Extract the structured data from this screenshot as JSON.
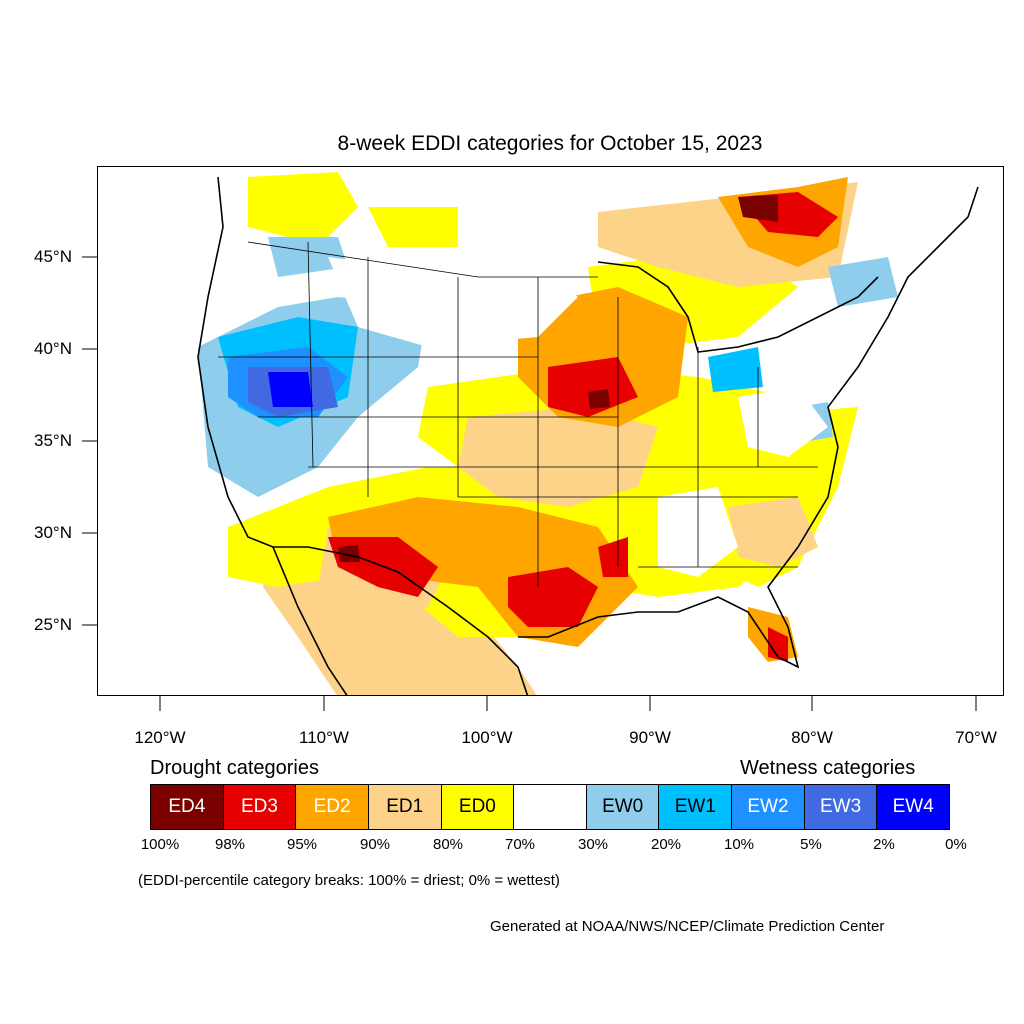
{
  "title": "8-week EDDI categories for October 15, 2023",
  "y_ticks": [
    "45°N",
    "40°N",
    "35°N",
    "30°N",
    "25°N"
  ],
  "x_ticks": [
    "120°W",
    "110°W",
    "100°W",
    "90°W",
    "80°W",
    "70°W"
  ],
  "legend": {
    "drought_heading": "Drought categories",
    "wetness_heading": "Wetness categories",
    "categories": [
      {
        "label": "ED4",
        "color": "#7a0000",
        "text_color": "#ffffff"
      },
      {
        "label": "ED3",
        "color": "#e60000",
        "text_color": "#ffffff"
      },
      {
        "label": "ED2",
        "color": "#ffa500",
        "text_color": "#ffffff"
      },
      {
        "label": "ED1",
        "color": "#fdd38a",
        "text_color": "#000000"
      },
      {
        "label": "ED0",
        "color": "#ffff00",
        "text_color": "#000000"
      },
      {
        "label": "",
        "color": "#ffffff",
        "text_color": "#000000"
      },
      {
        "label": "EW0",
        "color": "#8ecdeb",
        "text_color": "#000000"
      },
      {
        "label": "EW1",
        "color": "#00bfff",
        "text_color": "#000000"
      },
      {
        "label": "EW2",
        "color": "#1e90ff",
        "text_color": "#ffffff"
      },
      {
        "label": "EW3",
        "color": "#4169e1",
        "text_color": "#ffffff"
      },
      {
        "label": "EW4",
        "color": "#0000ff",
        "text_color": "#ffffff"
      }
    ],
    "breaks": [
      "100%",
      "98%",
      "95%",
      "90%",
      "80%",
      "70%",
      "30%",
      "20%",
      "10%",
      "5%",
      "2%",
      "0%"
    ]
  },
  "note": "(EDDI-percentile category breaks: 100% = driest; 0% = wettest)",
  "credit": "Generated at NOAA/NWS/NCEP/Climate Prediction Center"
}
